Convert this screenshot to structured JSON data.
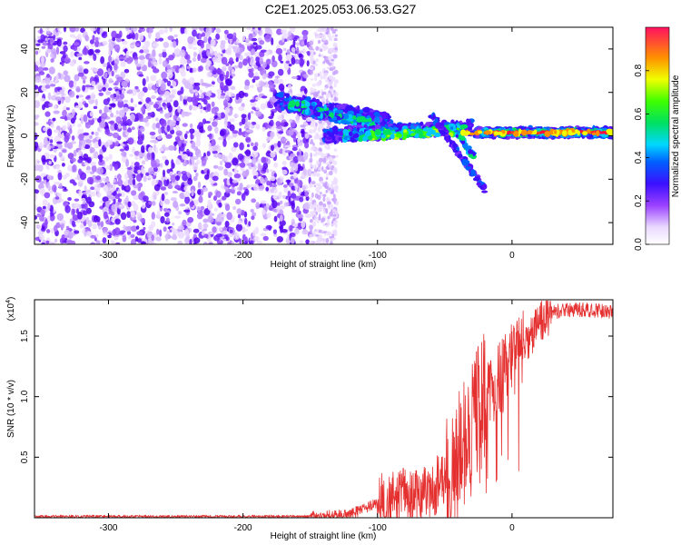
{
  "title": "C2E1.2025.053.06.53.G27",
  "chart_data": [
    {
      "type": "heatmap",
      "name": "spectrogram",
      "xlabel": "Height of straight line (km)",
      "ylabel": "Frequency (Hz)",
      "xlim": [
        -355,
        75
      ],
      "ylim": [
        -50,
        50
      ],
      "xticks": [
        -300,
        -200,
        -100,
        0
      ],
      "yticks": [
        -40,
        -20,
        0,
        20,
        40
      ],
      "colorbar": {
        "label": "Normalized spectral amplitude",
        "range": [
          0,
          1
        ],
        "ticks": [
          "0.0",
          "0.2",
          "0.4",
          "0.6",
          "0.8"
        ]
      }
    },
    {
      "type": "line",
      "name": "snr",
      "xlabel": "Height of straight line (km)",
      "ylabel": "SNR (10 * v/v)",
      "scale_note": "(x10",
      "scale_exp": "4",
      "xlim": [
        -355,
        75
      ],
      "ylim": [
        0,
        1.8
      ],
      "xticks": [
        -300,
        -200,
        -100,
        0
      ],
      "yticks": [
        0.5,
        1.0,
        1.5
      ],
      "ytick_labels": [
        "0.5",
        "1.0",
        "1.5"
      ],
      "color": "#e53030",
      "trend": [
        [
          -355,
          0.01
        ],
        [
          -150,
          0.01
        ],
        [
          -120,
          0.03
        ],
        [
          -100,
          0.12
        ],
        [
          -80,
          0.16
        ],
        [
          -60,
          0.22
        ],
        [
          -50,
          0.35
        ],
        [
          -40,
          0.48
        ],
        [
          -30,
          0.78
        ],
        [
          -20,
          1.0
        ],
        [
          -10,
          1.12
        ],
        [
          0,
          1.3
        ],
        [
          10,
          1.45
        ],
        [
          20,
          1.6
        ],
        [
          30,
          1.7
        ],
        [
          50,
          1.72
        ],
        [
          75,
          1.7
        ]
      ]
    }
  ]
}
